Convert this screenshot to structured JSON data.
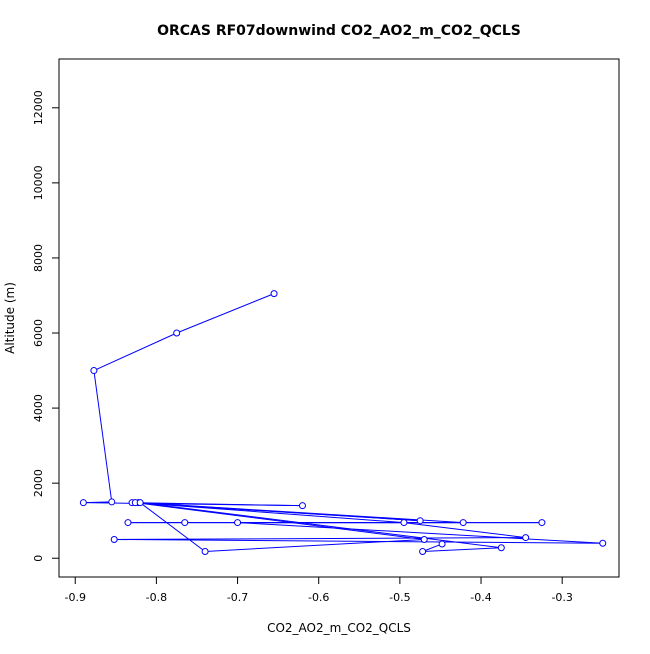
{
  "chart_data": {
    "type": "line",
    "title": "ORCAS RF07downwind CO2_AO2_m_CO2_QCLS",
    "xlabel": "CO2_AO2_m_CO2_QCLS",
    "ylabel": "Altitude (m)",
    "xlim": [
      -0.92,
      -0.23
    ],
    "ylim": [
      -500,
      13300
    ],
    "xticks": [
      -0.9,
      -0.8,
      -0.7,
      -0.6,
      -0.5,
      -0.4,
      -0.3
    ],
    "xtick_labels": [
      "-0.9",
      "-0.8",
      "-0.7",
      "-0.6",
      "-0.5",
      "-0.4",
      "-0.3"
    ],
    "yticks": [
      0,
      2000,
      4000,
      6000,
      8000,
      10000,
      12000
    ],
    "ytick_labels": [
      "0",
      "2000",
      "4000",
      "6000",
      "8000",
      "10000",
      "12000"
    ],
    "grid": false,
    "line_color": "#0000ff",
    "series": [
      {
        "x": [
          -0.655,
          -0.775,
          -0.877,
          -0.855,
          -0.89,
          -0.62,
          -0.83,
          -0.475,
          -0.822,
          -0.422,
          -0.835,
          -0.765,
          -0.325,
          -0.7,
          -0.25,
          -0.852,
          -0.345,
          -0.495,
          -0.826,
          -0.47,
          -0.74,
          -0.82,
          -0.375,
          -0.472,
          -0.448
        ],
        "y": [
          7050,
          6000,
          5000,
          1500,
          1480,
          1400,
          1480,
          1000,
          1480,
          950,
          950,
          950,
          950,
          950,
          400,
          500,
          550,
          950,
          1480,
          500,
          180,
          1480,
          280,
          180,
          380
        ]
      }
    ]
  }
}
